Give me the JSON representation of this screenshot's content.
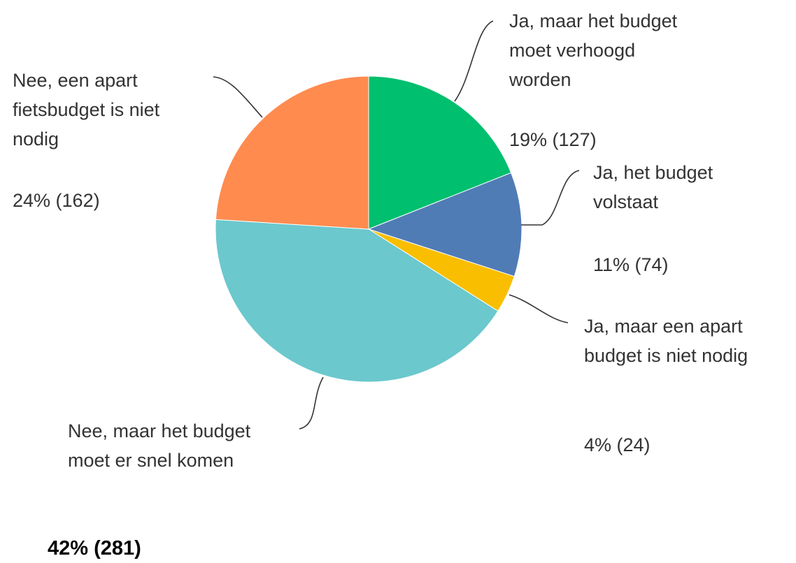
{
  "chart_data": {
    "type": "pie",
    "categories": [
      "Ja, maar het budget moet verhoogd worden",
      "Ja, het budget volstaat",
      "Ja, maar een apart budget is niet nodig",
      "Nee, maar het budget moet er snel komen",
      "Nee, een apart fietsbudget is niet nodig"
    ],
    "values": [
      19,
      11,
      4,
      42,
      24
    ],
    "value_labels": [
      "19% (127)",
      "11% (74)",
      "4% (24)",
      "42% (281)",
      "24% (162)"
    ],
    "colors": [
      "#00bf6f",
      "#507cb6",
      "#f9be00",
      "#6bc8cd",
      "#ff8b4f"
    ]
  }
}
